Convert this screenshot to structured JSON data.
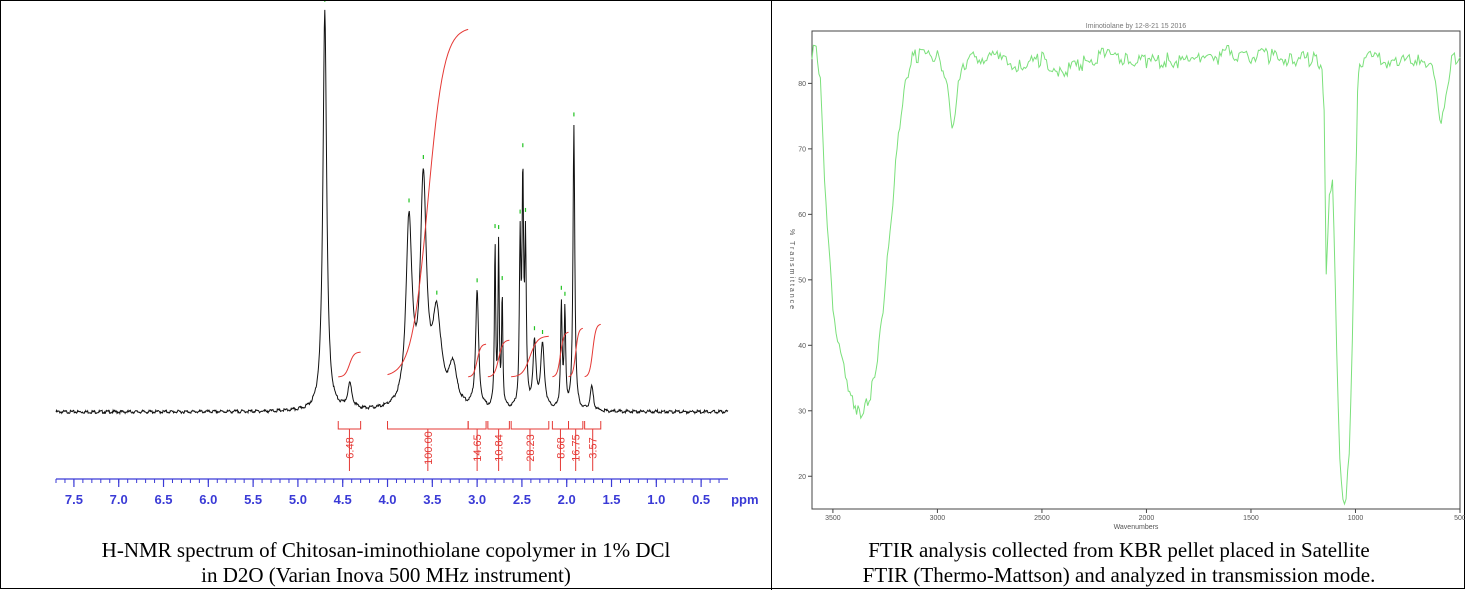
{
  "colors": {
    "nmr_trace": "#111111",
    "nmr_integral": "#e53935",
    "nmr_axis": "#3a3ad6",
    "nmr_peak_marker": "#22c322",
    "ftir_trace": "#7be07b",
    "ftir_axis": "#444444"
  },
  "nmr": {
    "caption_line1": "H-NMR spectrum of Chitosan-iminothiolane copolymer in 1% DCl",
    "caption_line2": "in D2O (Varian Inova 500 MHz instrument)",
    "axis_unit": "ppm"
  },
  "ftir": {
    "caption_line1": "FTIR analysis collected from KBR pellet placed in Satellite",
    "caption_line2": "FTIR (Thermo-Mattson) and analyzed in transmission mode.",
    "xlabel": "Wavenumbers",
    "ylabel": "% Transmittance",
    "header": "Iminotiolane by 12-8-21 15 2016"
  },
  "chart_data": [
    {
      "type": "line",
      "xlim": [
        7.7,
        0.2
      ],
      "x_reversed": true,
      "x_ticks": [
        7.5,
        7.0,
        6.5,
        6.0,
        5.5,
        5.0,
        4.5,
        4.0,
        3.5,
        3.0,
        2.5,
        2.0,
        1.5,
        1.0,
        0.5
      ],
      "x_tick_labels": [
        "7.5",
        "7.0",
        "6.5",
        "6.0",
        "5.5",
        "5.0",
        "4.5",
        "4.0",
        "3.5",
        "3.0",
        "2.5",
        "2.0",
        "1.5",
        "1.0",
        "0.5"
      ],
      "xunit": "ppm",
      "peaks": [
        {
          "ppm": 4.7,
          "height": 1.0,
          "width": 0.025
        },
        {
          "ppm": 4.42,
          "height": 0.06,
          "width": 0.03
        },
        {
          "ppm": 3.76,
          "height": 0.46,
          "width": 0.04
        },
        {
          "ppm": 3.6,
          "height": 0.55,
          "width": 0.04
        },
        {
          "ppm": 3.45,
          "height": 0.22,
          "width": 0.06
        },
        {
          "ppm": 3.27,
          "height": 0.1,
          "width": 0.05
        },
        {
          "ppm": 3.0,
          "height": 0.29,
          "width": 0.02
        },
        {
          "ppm": 2.8,
          "height": 0.41,
          "width": 0.008
        },
        {
          "ppm": 2.76,
          "height": 0.4,
          "width": 0.008
        },
        {
          "ppm": 2.72,
          "height": 0.28,
          "width": 0.008
        },
        {
          "ppm": 2.52,
          "height": 0.4,
          "width": 0.01
        },
        {
          "ppm": 2.49,
          "height": 0.55,
          "width": 0.01
        },
        {
          "ppm": 2.46,
          "height": 0.4,
          "width": 0.01
        },
        {
          "ppm": 2.36,
          "height": 0.16,
          "width": 0.02
        },
        {
          "ppm": 2.27,
          "height": 0.16,
          "width": 0.025
        },
        {
          "ppm": 2.06,
          "height": 0.26,
          "width": 0.01
        },
        {
          "ppm": 2.02,
          "height": 0.24,
          "width": 0.01
        },
        {
          "ppm": 1.92,
          "height": 0.71,
          "width": 0.012
        },
        {
          "ppm": 1.72,
          "height": 0.06,
          "width": 0.02
        }
      ],
      "integrals": [
        {
          "label": "6.48",
          "from": 4.55,
          "to": 4.3
        },
        {
          "label": "100.00",
          "from": 4.0,
          "to": 3.1
        },
        {
          "label": "14.65",
          "from": 3.1,
          "to": 2.9
        },
        {
          "label": "10.84",
          "from": 2.88,
          "to": 2.64
        },
        {
          "label": "28.23",
          "from": 2.62,
          "to": 2.2
        },
        {
          "label": "8.68",
          "from": 2.16,
          "to": 1.98
        },
        {
          "label": "16.75",
          "from": 1.98,
          "to": 1.82
        },
        {
          "label": "3.57",
          "from": 1.8,
          "to": 1.62
        }
      ]
    },
    {
      "type": "line",
      "xlabel": "Wavenumbers",
      "ylabel": "% Transmittance",
      "xlim": [
        3600,
        500
      ],
      "x_reversed": true,
      "ylim": [
        15,
        88
      ],
      "x_ticks": [
        3500,
        3000,
        2500,
        2000,
        1500,
        1000,
        500
      ],
      "y_ticks": [
        20,
        30,
        40,
        50,
        60,
        70,
        80
      ],
      "x": [
        3600,
        3580,
        3560,
        3540,
        3520,
        3500,
        3470,
        3440,
        3420,
        3400,
        3380,
        3360,
        3340,
        3320,
        3300,
        3280,
        3260,
        3240,
        3220,
        3200,
        3180,
        3160,
        3140,
        3120,
        3100,
        3000,
        2960,
        2930,
        2900,
        2870,
        2850,
        2800,
        2700,
        2600,
        2500,
        2400,
        2300,
        2200,
        2100,
        2000,
        1900,
        1800,
        1700,
        1650,
        1600,
        1550,
        1500,
        1400,
        1300,
        1200,
        1160,
        1150,
        1140,
        1125,
        1110,
        1090,
        1075,
        1060,
        1045,
        1030,
        1015,
        1000,
        990,
        980,
        900,
        800,
        700,
        640,
        610,
        590,
        560,
        540,
        520,
        500
      ],
      "y": [
        84,
        87,
        80,
        66,
        55,
        46,
        40,
        36,
        33,
        31.5,
        30.5,
        30,
        31,
        33,
        36,
        40,
        46,
        53,
        60,
        68,
        74,
        79,
        82,
        84,
        84.5,
        84.5,
        82,
        73,
        80,
        83.5,
        84,
        84.5,
        84,
        83,
        84,
        82,
        83.5,
        85,
        84,
        83.5,
        84,
        83.5,
        85,
        84,
        85.5,
        84,
        84.5,
        84.5,
        84,
        84,
        83.5,
        75,
        52,
        63,
        66,
        40,
        22,
        17,
        16,
        24,
        40,
        65,
        78,
        84,
        84,
        83.5,
        84,
        83.5,
        79,
        73,
        80,
        84,
        84,
        84
      ]
    }
  ]
}
